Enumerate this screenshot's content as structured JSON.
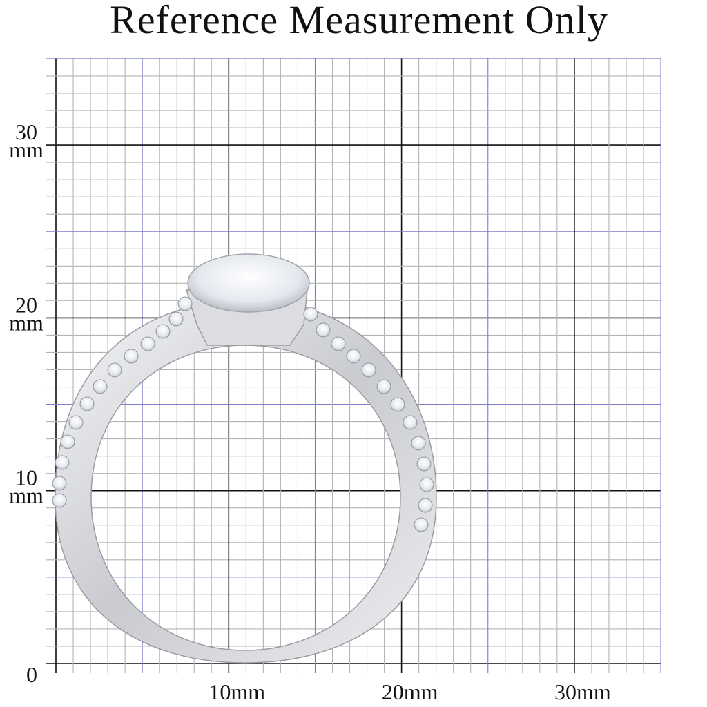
{
  "title": "Reference Measurement Only",
  "y_labels": [
    {
      "number": "30",
      "unit": "mm"
    },
    {
      "number": "20",
      "unit": "mm"
    },
    {
      "number": "10",
      "unit": "mm"
    }
  ],
  "origin": "0",
  "x_labels": [
    "10mm",
    "20mm",
    "30mm"
  ]
}
